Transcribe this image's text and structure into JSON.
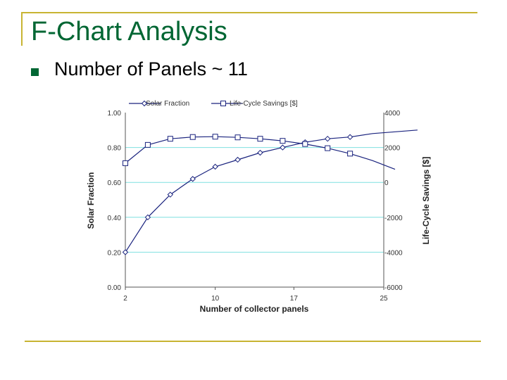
{
  "slide": {
    "title": "F-Chart Analysis",
    "bullet": "Number of Panels ~ 11"
  },
  "colors": {
    "title": "#006633",
    "bullet": "#006633",
    "rule": "#c8b432",
    "series_line": "#1a237e",
    "grid": "#7fe0e0"
  },
  "icons": {
    "bullet": "square-bullet-icon",
    "solar_marker": "diamond-marker-icon",
    "lcs_marker": "square-marker-icon"
  },
  "chart_data": {
    "type": "line",
    "title": "",
    "xlabel": "Number of collector panels",
    "ylabel_left": "Solar Fraction",
    "ylabel_right": "Life-Cycle Savings [$]",
    "x_ticks": [
      2,
      10,
      17,
      25
    ],
    "xlim": [
      2,
      25
    ],
    "ylim_left": [
      0,
      1
    ],
    "ylim_right": [
      -6000,
      4000
    ],
    "y_ticks_left": [
      "0.00",
      "0.20",
      "0.40",
      "0.60",
      "0.80",
      "1.00"
    ],
    "y_ticks_right": [
      "-6000",
      "-4000",
      "-2000",
      "0",
      "2000",
      "4000"
    ],
    "grid": "horizontal",
    "legend_position": "top",
    "legend": [
      "Solar Fraction",
      "Life-Cycle Savings [$]"
    ],
    "series": [
      {
        "name": "Solar Fraction",
        "axis": "left",
        "marker": "diamond",
        "x": [
          2,
          4,
          6,
          8,
          10,
          12,
          14,
          16,
          18,
          20,
          22,
          24,
          26,
          28
        ],
        "y": [
          0.2,
          0.4,
          0.53,
          0.62,
          0.69,
          0.73,
          0.77,
          0.8,
          0.83,
          0.85,
          0.86,
          0.88,
          0.89,
          0.9
        ],
        "markers_x": [
          2,
          4,
          6,
          8,
          10,
          12,
          14,
          16,
          18,
          20,
          22
        ]
      },
      {
        "name": "Life-Cycle Savings [$]",
        "axis": "right",
        "marker": "square",
        "x": [
          2,
          4,
          6,
          8,
          10,
          12,
          14,
          16,
          18,
          20,
          22,
          24,
          26
        ],
        "y": [
          1100,
          2150,
          2500,
          2600,
          2620,
          2580,
          2500,
          2380,
          2200,
          1960,
          1650,
          1250,
          750
        ],
        "markers_x": [
          2,
          4,
          6,
          8,
          10,
          12,
          14,
          16,
          18,
          20,
          22
        ]
      }
    ]
  }
}
